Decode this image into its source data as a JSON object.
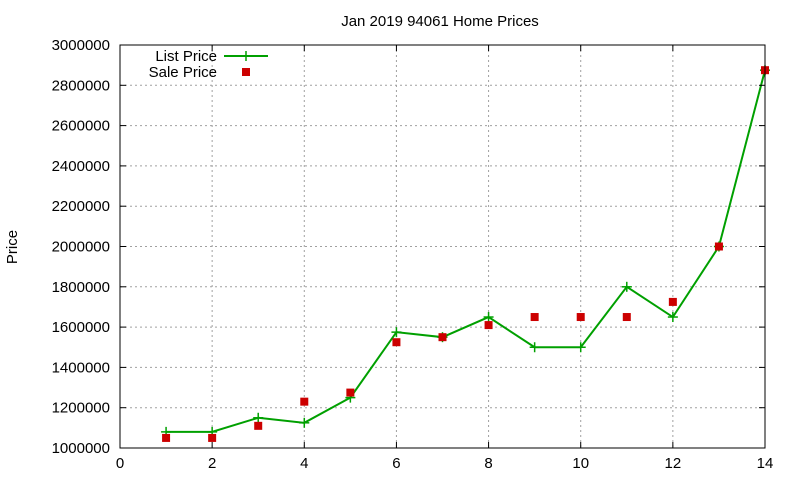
{
  "chart_data": {
    "type": "line",
    "title": "Jan 2019 94061 Home Prices",
    "xlabel": "",
    "ylabel": "Price",
    "xlim": [
      0,
      14
    ],
    "ylim": [
      1000000,
      3000000
    ],
    "x_ticks": [
      0,
      2,
      4,
      6,
      8,
      10,
      12,
      14
    ],
    "y_ticks": [
      1000000,
      1200000,
      1400000,
      1600000,
      1800000,
      2000000,
      2200000,
      2400000,
      2600000,
      2800000,
      3000000
    ],
    "grid": true,
    "legend_position": "top-left",
    "series": [
      {
        "name": "List Price",
        "style": "line-with-plus",
        "color": "#00a000",
        "x": [
          1,
          2,
          3,
          4,
          5,
          6,
          7,
          8,
          9,
          10,
          11,
          12,
          13,
          14
        ],
        "values": [
          1080000,
          1080000,
          1150000,
          1125000,
          1250000,
          1575000,
          1550000,
          1650000,
          1500000,
          1500000,
          1800000,
          1650000,
          2000000,
          2875000
        ]
      },
      {
        "name": "Sale Price",
        "style": "square-points",
        "color": "#cc0000",
        "x": [
          1,
          2,
          3,
          4,
          5,
          6,
          7,
          8,
          9,
          10,
          11,
          12,
          13,
          14
        ],
        "values": [
          1050000,
          1050000,
          1110000,
          1230000,
          1275000,
          1525000,
          1550000,
          1610000,
          1650000,
          1650000,
          1650000,
          1725000,
          2000000,
          2875000
        ]
      }
    ]
  }
}
